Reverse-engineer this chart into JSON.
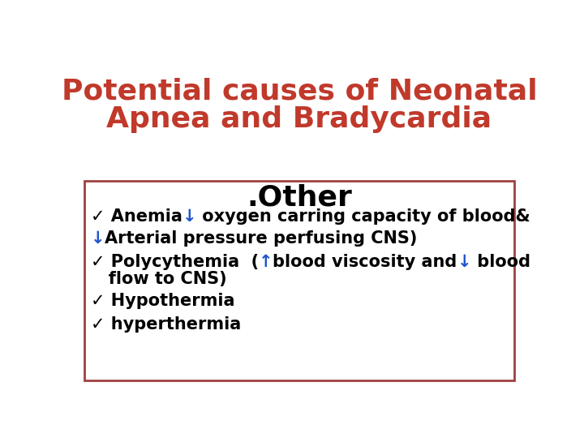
{
  "title_line1": "Potential causes of Neonatal",
  "title_line2": "Apnea and Bradycardia",
  "title_color": "#c0392b",
  "title_fontsize": 26,
  "section_header": ".Other",
  "section_header_fontsize": 26,
  "section_header_color": "#000000",
  "background_color": "#ffffff",
  "box_edge_color": "#a04040",
  "bullet_fontsize": 15,
  "items": [
    [
      {
        "text": "✓ Anemia",
        "color": "#000000"
      },
      {
        "text": "↓",
        "color": "#2155cd"
      },
      {
        "text": " oxygen carring capacity of blood&",
        "color": "#000000"
      }
    ],
    [
      {
        "text": "↓",
        "color": "#2155cd"
      },
      {
        "text": "Arterial pressure perfusing CNS)",
        "color": "#000000"
      }
    ],
    [
      {
        "text": "✓ Polycythemia  (",
        "color": "#000000"
      },
      {
        "text": "↑",
        "color": "#2155cd"
      },
      {
        "text": "blood viscosity and",
        "color": "#000000"
      },
      {
        "text": "↓",
        "color": "#2155cd"
      },
      {
        "text": " blood",
        "color": "#000000"
      }
    ],
    [
      {
        "text": "   flow to CNS)",
        "color": "#000000"
      }
    ],
    [
      {
        "text": "✓ Hypothermia",
        "color": "#000000"
      }
    ],
    [
      {
        "text": "✓ hyperthermia",
        "color": "#000000"
      }
    ]
  ]
}
